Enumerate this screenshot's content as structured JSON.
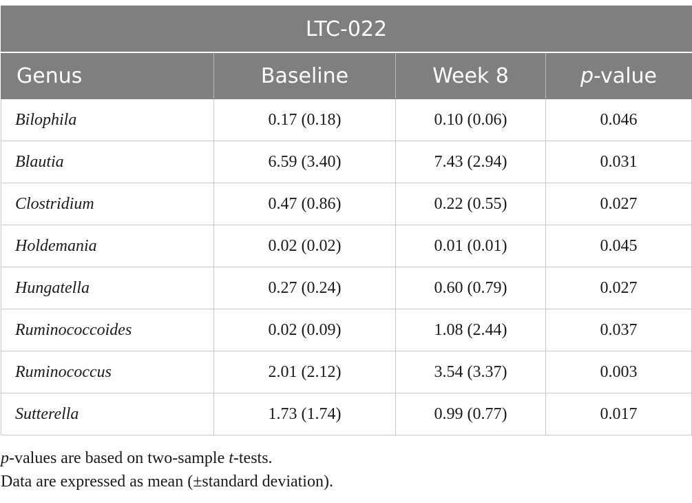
{
  "table": {
    "title": "LTC-022",
    "headers": {
      "genus": "Genus",
      "baseline": "Baseline",
      "week8": "Week 8",
      "pvalue_p": "p",
      "pvalue_rest": "-value"
    },
    "rows": [
      {
        "genus": "Bilophila",
        "baseline": "0.17 (0.18)",
        "week8": "0.10 (0.06)",
        "pvalue": "0.046"
      },
      {
        "genus": "Blautia",
        "baseline": "6.59 (3.40)",
        "week8": "7.43 (2.94)",
        "pvalue": "0.031"
      },
      {
        "genus": "Clostridium",
        "baseline": "0.47 (0.86)",
        "week8": "0.22 (0.55)",
        "pvalue": "0.027"
      },
      {
        "genus": "Holdemania",
        "baseline": "0.02 (0.02)",
        "week8": "0.01 (0.01)",
        "pvalue": "0.045"
      },
      {
        "genus": "Hungatella",
        "baseline": "0.27 (0.24)",
        "week8": "0.60 (0.79)",
        "pvalue": "0.027"
      },
      {
        "genus": "Ruminococcoides",
        "baseline": "0.02 (0.09)",
        "week8": "1.08 (2.44)",
        "pvalue": "0.037"
      },
      {
        "genus": "Ruminococcus",
        "baseline": "2.01 (2.12)",
        "week8": "3.54 (3.37)",
        "pvalue": "0.003"
      },
      {
        "genus": "Sutterella",
        "baseline": "1.73 (1.74)",
        "week8": "0.99 (0.77)",
        "pvalue": "0.017"
      }
    ]
  },
  "notes": {
    "line1_p": "p",
    "line1_mid": "-values are based on two-sample ",
    "line1_t": "t",
    "line1_end": "-tests.",
    "line2": "Data are expressed as mean (±standard deviation)."
  }
}
